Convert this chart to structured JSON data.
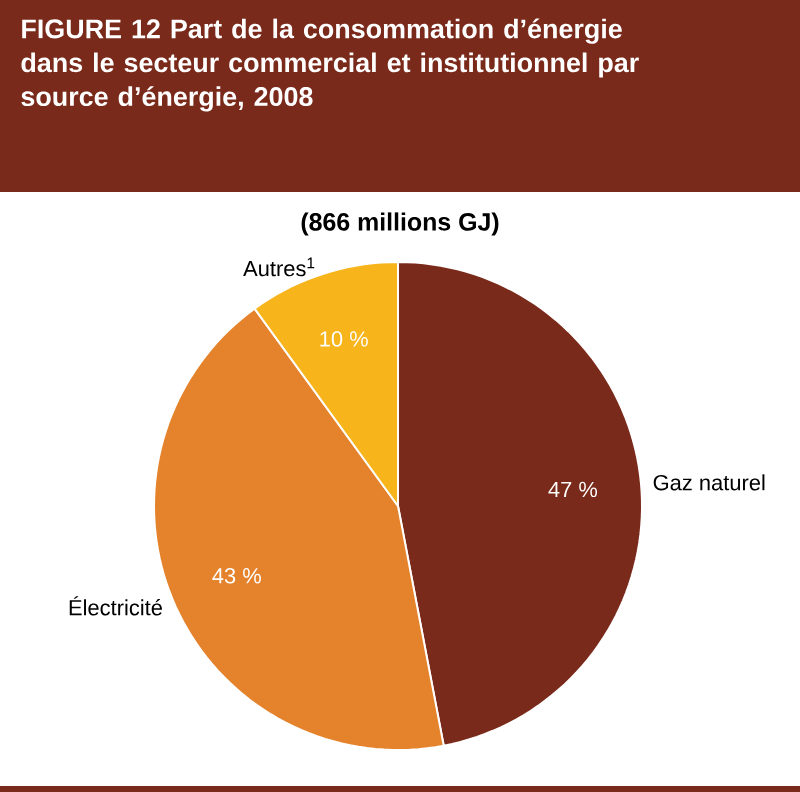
{
  "chart_data": {
    "type": "pie",
    "title": "FIGURE 12 Part de la consommation d’énergie dans le secteur commercial et institutionnel par source d’énergie, 2008",
    "subtitle": "(866 millions GJ)",
    "categories": [
      "Gaz naturel",
      "Électricité",
      "Autres$^{1}$"
    ],
    "values": [
      47,
      43,
      10
    ],
    "colors": [
      "#7a2a1a",
      "#e5832c",
      "#f7b41b"
    ],
    "value_labels": [
      "47 %",
      "43 %",
      "10 %"
    ]
  }
}
